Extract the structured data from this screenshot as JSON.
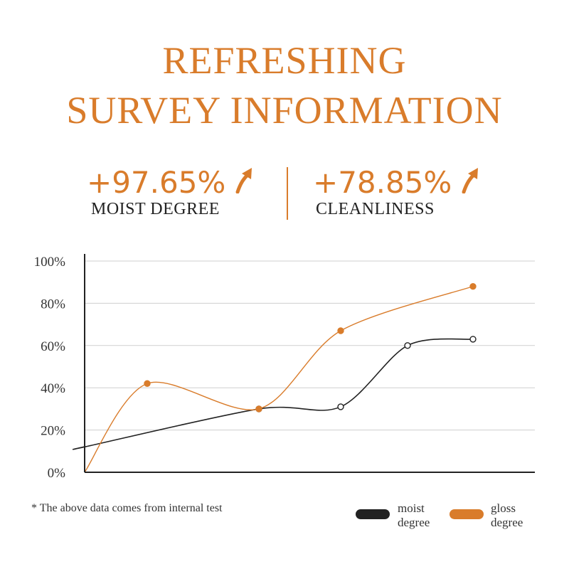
{
  "header": {
    "title_line1": "REFRESHING",
    "title_line2": "SURVEY INFORMATION"
  },
  "stats": [
    {
      "value": "+97.65%",
      "label": "MOIST DEGREE"
    },
    {
      "value": "+78.85%",
      "label": "CLEANLINESS"
    }
  ],
  "footnote": "* The above data comes from internal test",
  "colors": {
    "accent": "#d97c2b",
    "dark": "#222222"
  },
  "chart_data": {
    "type": "line",
    "title": "",
    "xlabel": "",
    "ylabel": "",
    "ylim": [
      0,
      100
    ],
    "yticks": [
      "0%",
      "20%",
      "40%",
      "60%",
      "80%",
      "100%"
    ],
    "grid": true,
    "legend": "bottom-right",
    "series": [
      {
        "name": "moist degree",
        "color": "#222222",
        "points": [
          [
            0,
            12
          ],
          [
            1,
            30
          ],
          [
            2,
            31
          ],
          [
            3,
            60
          ],
          [
            4,
            63
          ]
        ]
      },
      {
        "name": "gloss degree",
        "color": "#d97c2b",
        "points": [
          [
            0,
            42
          ],
          [
            1,
            30
          ],
          [
            2,
            67
          ],
          [
            3,
            88
          ]
        ]
      }
    ],
    "legend_entries": [
      {
        "line1": "moist",
        "line2": "degree",
        "color": "#222222"
      },
      {
        "line1": "gloss",
        "line2": "degree",
        "color": "#d97c2b"
      }
    ]
  }
}
